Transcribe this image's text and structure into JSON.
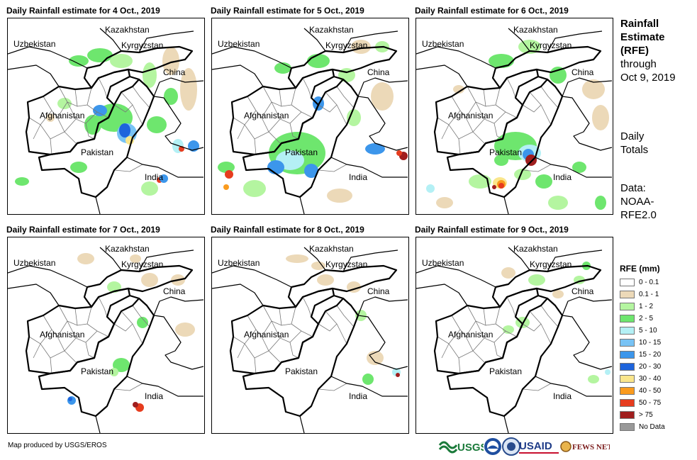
{
  "panels": [
    {
      "title": "Daily Rainfall estimate for 4 Oct., 2019"
    },
    {
      "title": "Daily Rainfall estimate for 5 Oct., 2019"
    },
    {
      "title": "Daily Rainfall estimate for 6 Oct., 2019"
    },
    {
      "title": "Daily Rainfall estimate for 7 Oct., 2019"
    },
    {
      "title": "Daily Rainfall estimate for 8 Oct., 2019"
    },
    {
      "title": "Daily Rainfall estimate for 9 Oct., 2019"
    }
  ],
  "countries": {
    "uzbekistan": "Uzbekistan",
    "kazakhstan": "Kazakhstan",
    "kyrgyzstan": "Kyrgyzstan",
    "china": "China",
    "afghanistan": "Afghanistan",
    "pakistan": "Pakistan",
    "india": "India"
  },
  "sidebar": {
    "title_lines": [
      "Rainfall",
      "Estimate",
      "(RFE)"
    ],
    "through": "through",
    "date": "Oct 9, 2019",
    "daily_lines": [
      "Daily",
      "Totals"
    ],
    "data_lines": [
      "Data:",
      "NOAA-",
      "RFE2.0"
    ]
  },
  "legend": {
    "title": "RFE (mm)",
    "items": [
      {
        "label": "0 - 0.1",
        "color": "#ffffff"
      },
      {
        "label": "0.1 - 1",
        "color": "#ecd9b8"
      },
      {
        "label": "1 - 2",
        "color": "#b4f5a0"
      },
      {
        "label": "2 - 5",
        "color": "#6ee66e"
      },
      {
        "label": "5 - 10",
        "color": "#b4f0f5"
      },
      {
        "label": "10 - 15",
        "color": "#78c3f5"
      },
      {
        "label": "15 - 20",
        "color": "#3c96eb"
      },
      {
        "label": "20 - 30",
        "color": "#1e64dc"
      },
      {
        "label": "30 - 40",
        "color": "#fae68c"
      },
      {
        "label": "40 - 50",
        "color": "#fa9b1e"
      },
      {
        "label": "50 - 75",
        "color": "#e63c1e"
      },
      {
        "label": "> 75",
        "color": "#a01e1e"
      },
      {
        "label": "No Data",
        "color": "#999999"
      }
    ]
  },
  "credit": "Map produced by USGS/EROS",
  "logos": {
    "usgs": "USGS",
    "usaid": "USAID",
    "fewsnet": "FEWS NET"
  }
}
